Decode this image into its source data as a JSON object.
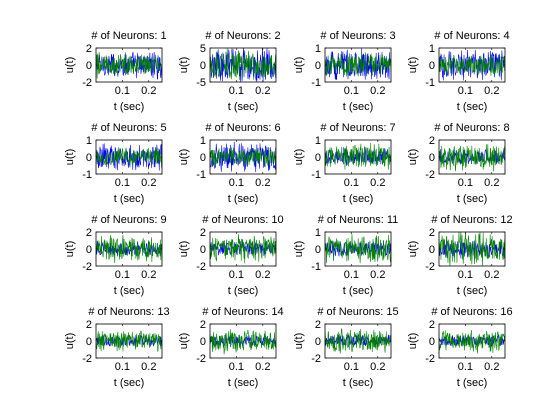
{
  "colors": {
    "blue": "#0000ff",
    "green": "#008000",
    "axes": "#000000",
    "background": "#ffffff"
  },
  "chart_data": [
    {
      "type": "line",
      "title": "# of Neurons: 1",
      "xlabel": "t (sec)",
      "ylabel": "u(t)",
      "xlim": [
        0,
        0.25
      ],
      "ylim": [
        -2,
        2
      ],
      "xticks": [
        "0.1",
        "0.2"
      ],
      "yticks": [
        "2",
        "0",
        "-2"
      ],
      "series": [
        {
          "color": "#0000ff",
          "amplitude": 0.9
        },
        {
          "color": "#008000",
          "amplitude": 0.7,
          "initial_transient": 1.9
        }
      ]
    },
    {
      "type": "line",
      "title": "# of Neurons: 2",
      "xlabel": "t (sec)",
      "ylabel": "u(t)",
      "xlim": [
        0,
        0.25
      ],
      "ylim": [
        -5,
        5
      ],
      "xticks": [
        "0.1",
        "0.2"
      ],
      "yticks": [
        "5",
        "0",
        "-5"
      ],
      "series": [
        {
          "color": "#0000ff",
          "amplitude": 1.2
        },
        {
          "color": "#008000",
          "amplitude": 1.0
        }
      ]
    },
    {
      "type": "line",
      "title": "# of Neurons: 3",
      "xlabel": "t (sec)",
      "ylabel": "u(t)",
      "xlim": [
        0,
        0.25
      ],
      "ylim": [
        -1,
        1
      ],
      "xticks": [
        "0.1",
        "0.2"
      ],
      "yticks": [
        "1",
        "0",
        "-1"
      ],
      "series": [
        {
          "color": "#0000ff",
          "amplitude": 1.0
        },
        {
          "color": "#008000",
          "amplitude": 0.8
        }
      ]
    },
    {
      "type": "line",
      "title": "# of Neurons: 4",
      "xlabel": "t (sec)",
      "ylabel": "u(t)",
      "xlim": [
        0,
        0.25
      ],
      "ylim": [
        -1,
        1
      ],
      "xticks": [
        "0.1",
        "0.2"
      ],
      "yticks": [
        "1",
        "0",
        "-1"
      ],
      "series": [
        {
          "color": "#0000ff",
          "amplitude": 1.0
        },
        {
          "color": "#008000",
          "amplitude": 0.7
        }
      ]
    },
    {
      "type": "line",
      "title": "# of Neurons: 5",
      "xlabel": "t (sec)",
      "ylabel": "u(t)",
      "xlim": [
        0,
        0.25
      ],
      "ylim": [
        -1,
        1
      ],
      "xticks": [
        "0.1",
        "0.2"
      ],
      "yticks": [
        "1",
        "0",
        "-1"
      ],
      "series": [
        {
          "color": "#0000ff",
          "amplitude": 0.9
        },
        {
          "color": "#008000",
          "amplitude": 0.6
        }
      ]
    },
    {
      "type": "line",
      "title": "# of Neurons: 6",
      "xlabel": "t (sec)",
      "ylabel": "u(t)",
      "xlim": [
        0,
        0.25
      ],
      "ylim": [
        -1,
        1
      ],
      "xticks": [
        "0.1",
        "0.2"
      ],
      "yticks": [
        "1",
        "0",
        "-1"
      ],
      "series": [
        {
          "color": "#0000ff",
          "amplitude": 1.0
        },
        {
          "color": "#008000",
          "amplitude": 0.7
        }
      ]
    },
    {
      "type": "line",
      "title": "# of Neurons: 7",
      "xlabel": "t (sec)",
      "ylabel": "u(t)",
      "xlim": [
        0,
        0.25
      ],
      "ylim": [
        -1,
        1
      ],
      "xticks": [
        "0.1",
        "0.2"
      ],
      "yticks": [
        "1",
        "0",
        "-1"
      ],
      "series": [
        {
          "color": "#0000ff",
          "amplitude": 0.6
        },
        {
          "color": "#008000",
          "amplitude": 0.85
        }
      ]
    },
    {
      "type": "line",
      "title": "# of Neurons: 8",
      "xlabel": "t (sec)",
      "ylabel": "u(t)",
      "xlim": [
        0,
        0.25
      ],
      "ylim": [
        -2,
        2
      ],
      "xticks": [
        "0.1",
        "0.2"
      ],
      "yticks": [
        "2",
        "0",
        "-2"
      ],
      "series": [
        {
          "color": "#0000ff",
          "amplitude": 0.5
        },
        {
          "color": "#008000",
          "amplitude": 0.9
        }
      ]
    },
    {
      "type": "line",
      "title": "# of Neurons: 9",
      "xlabel": "t (sec)",
      "ylabel": "u(t)",
      "xlim": [
        0,
        0.25
      ],
      "ylim": [
        -2,
        2
      ],
      "xticks": [
        "0.1",
        "0.2"
      ],
      "yticks": [
        "2",
        "0",
        "-2"
      ],
      "series": [
        {
          "color": "#0000ff",
          "amplitude": 0.5
        },
        {
          "color": "#008000",
          "amplitude": 0.9
        }
      ]
    },
    {
      "type": "line",
      "title": "# of Neurons: 10",
      "xlabel": "t (sec)",
      "ylabel": "u(t)",
      "xlim": [
        0,
        0.25
      ],
      "ylim": [
        -2,
        2
      ],
      "xticks": [
        "0.1",
        "0.2"
      ],
      "yticks": [
        "2",
        "0",
        "-2"
      ],
      "series": [
        {
          "color": "#0000ff",
          "amplitude": 0.5
        },
        {
          "color": "#008000",
          "amplitude": 0.9
        }
      ]
    },
    {
      "type": "line",
      "title": "# of Neurons: 11",
      "xlabel": "t (sec)",
      "ylabel": "u(t)",
      "xlim": [
        0,
        0.25
      ],
      "ylim": [
        -1,
        1
      ],
      "xticks": [
        "0.1",
        "0.2"
      ],
      "yticks": [
        "1",
        "0",
        "-1"
      ],
      "series": [
        {
          "color": "#0000ff",
          "amplitude": 0.5
        },
        {
          "color": "#008000",
          "amplitude": 0.95
        }
      ]
    },
    {
      "type": "line",
      "title": "# of Neurons: 12",
      "xlabel": "t (sec)",
      "ylabel": "u(t)",
      "xlim": [
        0,
        0.25
      ],
      "ylim": [
        -2,
        2
      ],
      "xticks": [
        "0.1",
        "0.2"
      ],
      "yticks": [
        "2",
        "0",
        "-2"
      ],
      "series": [
        {
          "color": "#0000ff",
          "amplitude": 0.6
        },
        {
          "color": "#008000",
          "amplitude": 1.1
        }
      ]
    },
    {
      "type": "line",
      "title": "# of Neurons: 13",
      "xlabel": "t (sec)",
      "ylabel": "u(t)",
      "xlim": [
        0,
        0.25
      ],
      "ylim": [
        -2,
        2
      ],
      "xticks": [
        "0.1",
        "0.2"
      ],
      "yticks": [
        "2",
        "0",
        "-2"
      ],
      "series": [
        {
          "color": "#0000ff",
          "amplitude": 0.4
        },
        {
          "color": "#008000",
          "amplitude": 0.7
        }
      ]
    },
    {
      "type": "line",
      "title": "# of Neurons: 14",
      "xlabel": "t (sec)",
      "ylabel": "u(t)",
      "xlim": [
        0,
        0.25
      ],
      "ylim": [
        -2,
        2
      ],
      "xticks": [
        "0.1",
        "0.2"
      ],
      "yticks": [
        "2",
        "0",
        "-2"
      ],
      "series": [
        {
          "color": "#0000ff",
          "amplitude": 0.4
        },
        {
          "color": "#008000",
          "amplitude": 0.8
        }
      ]
    },
    {
      "type": "line",
      "title": "# of Neurons: 15",
      "xlabel": "t (sec)",
      "ylabel": "u(t)",
      "xlim": [
        0,
        0.25
      ],
      "ylim": [
        -2,
        2
      ],
      "xticks": [
        "0.1",
        "0.2"
      ],
      "yticks": [
        "2",
        "0",
        "-2"
      ],
      "series": [
        {
          "color": "#0000ff",
          "amplitude": 0.4
        },
        {
          "color": "#008000",
          "amplitude": 0.8
        }
      ]
    },
    {
      "type": "line",
      "title": "# of Neurons: 16",
      "xlabel": "t (sec)",
      "ylabel": "u(t)",
      "xlim": [
        0,
        0.25
      ],
      "ylim": [
        -2,
        2
      ],
      "xticks": [
        "0.1",
        "0.2"
      ],
      "yticks": [
        "2",
        "0",
        "-2"
      ],
      "series": [
        {
          "color": "#0000ff",
          "amplitude": 0.4
        },
        {
          "color": "#008000",
          "amplitude": 0.75
        }
      ]
    }
  ]
}
